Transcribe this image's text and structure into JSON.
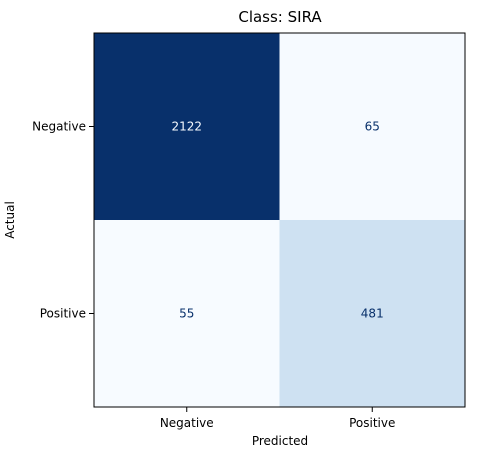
{
  "chart_data": {
    "type": "heatmap",
    "title": "Class: SIRA",
    "xlabel": "Predicted",
    "ylabel": "Actual",
    "x_categories": [
      "Negative",
      "Positive"
    ],
    "y_categories": [
      "Negative",
      "Positive"
    ],
    "values": [
      [
        2122,
        65
      ],
      [
        55,
        481
      ]
    ],
    "colormap": "Blues",
    "colors": {
      "max": "#08306b",
      "min": "#f7fbff",
      "mid_light": "#ccdff1",
      "text_dark_bg": "#f7fbff",
      "text_light_bg": "#08306b"
    }
  }
}
